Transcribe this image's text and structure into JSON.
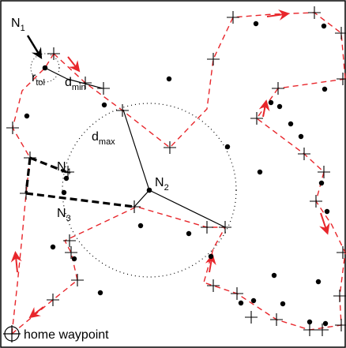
{
  "labels": {
    "n1": "N",
    "n1_sub": "1",
    "n2": "N",
    "n2_sub": "2",
    "n3": "N",
    "n3_sub": "3",
    "n4": "N",
    "n4_sub": "4",
    "r": "r",
    "r_sub": "tol",
    "dmin": "d",
    "dmin_sub": "min",
    "dmax": "d",
    "dmax_sub": "max",
    "home": "home waypoint"
  },
  "colors": {
    "path": "#e8262b",
    "arrow": "#e8262b",
    "ink": "#000000",
    "frame": "#000000"
  }
}
